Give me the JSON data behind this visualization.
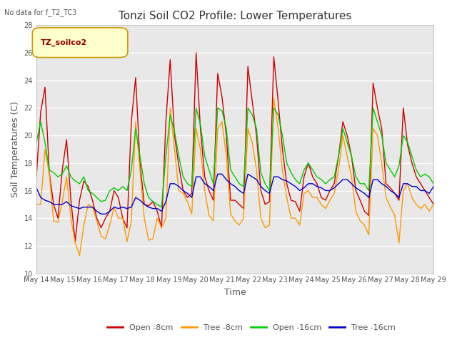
{
  "title": "Tonzi Soil CO2 Profile: Lower Temperatures",
  "subtitle": "No data for f_T2_TC3",
  "ylabel": "Soil Temperatures (C)",
  "xlabel": "Time",
  "ylim": [
    10,
    28
  ],
  "yticks": [
    10,
    12,
    14,
    16,
    18,
    20,
    22,
    24,
    26,
    28
  ],
  "xtick_labels": [
    "May 14",
    "May 15",
    "May 16",
    "May 17",
    "May 18",
    "May 19",
    "May 20",
    "May 21",
    "May 22",
    "May 23",
    "May 24",
    "May 25",
    "May 26",
    "May 27",
    "May 28",
    "May 29"
  ],
  "legend_label": "TZ_soilco2",
  "legend_entries": [
    "Open -8cm",
    "Tree -8cm",
    "Open -16cm",
    "Tree -16cm"
  ],
  "line_colors": [
    "#cc0000",
    "#ff9900",
    "#00cc00",
    "#0000cc"
  ],
  "title_fontsize": 11,
  "axis_label_fontsize": 9,
  "tick_fontsize": 7,
  "legend_fontsize": 8,
  "subtitle_fontsize": 7,
  "open8": [
    17.0,
    21.7,
    23.5,
    17.3,
    15.0,
    14.0,
    17.5,
    19.7,
    15.3,
    12.3,
    15.3,
    16.7,
    16.3,
    15.3,
    14.0,
    13.3,
    14.0,
    14.5,
    16.0,
    15.5,
    14.0,
    13.3,
    21.0,
    24.2,
    18.0,
    15.0,
    14.9,
    15.2,
    14.5,
    13.3,
    21.0,
    25.5,
    20.0,
    17.8,
    16.0,
    15.5,
    15.8,
    26.0,
    20.5,
    17.0,
    16.0,
    15.3,
    24.5,
    22.8,
    20.0,
    15.3,
    15.3,
    15.0,
    14.7,
    25.0,
    22.5,
    20.0,
    16.0,
    15.0,
    15.2,
    25.7,
    22.5,
    19.0,
    16.5,
    15.3,
    15.2,
    14.5,
    17.0,
    18.0,
    17.0,
    16.5,
    15.5,
    15.3,
    16.0,
    16.5,
    18.5,
    21.0,
    20.0,
    18.5,
    16.0,
    15.3,
    14.5,
    14.2,
    23.8,
    22.0,
    20.5,
    16.5,
    16.2,
    15.8,
    15.3,
    22.0,
    19.3,
    18.0,
    17.0,
    16.5,
    16.0,
    15.5,
    15.0
  ],
  "tree8": [
    15.0,
    15.0,
    19.0,
    17.2,
    13.8,
    13.7,
    15.2,
    17.0,
    14.0,
    12.2,
    11.3,
    13.5,
    15.0,
    14.8,
    13.8,
    12.7,
    12.5,
    13.5,
    14.8,
    14.0,
    14.0,
    12.3,
    13.8,
    21.0,
    17.5,
    14.0,
    12.4,
    12.5,
    14.0,
    13.3,
    14.0,
    22.0,
    19.0,
    16.0,
    15.8,
    15.2,
    14.3,
    20.5,
    19.0,
    16.0,
    14.2,
    13.8,
    20.5,
    21.0,
    18.5,
    14.3,
    13.8,
    13.5,
    14.0,
    20.5,
    19.5,
    17.5,
    14.0,
    13.3,
    13.5,
    22.7,
    20.5,
    17.5,
    15.5,
    14.0,
    14.0,
    13.5,
    15.8,
    16.0,
    15.5,
    15.5,
    15.0,
    14.7,
    15.3,
    15.8,
    17.5,
    20.0,
    18.5,
    17.0,
    14.5,
    13.8,
    13.5,
    12.8,
    20.5,
    20.0,
    18.0,
    15.5,
    14.8,
    14.2,
    12.2,
    16.0,
    16.5,
    15.5,
    15.0,
    14.7,
    15.0,
    14.5,
    15.0
  ],
  "open16": [
    19.5,
    21.0,
    19.5,
    17.5,
    17.3,
    17.0,
    17.2,
    17.8,
    17.0,
    16.7,
    16.5,
    17.0,
    16.0,
    15.8,
    15.5,
    15.2,
    15.3,
    16.0,
    16.2,
    16.0,
    16.3,
    16.0,
    17.5,
    20.5,
    18.5,
    16.5,
    15.5,
    15.2,
    15.0,
    14.8,
    18.5,
    21.5,
    20.3,
    18.5,
    17.0,
    16.5,
    16.3,
    22.0,
    20.8,
    18.5,
    17.5,
    16.5,
    22.0,
    21.8,
    20.5,
    17.5,
    17.0,
    16.5,
    16.3,
    22.0,
    21.5,
    20.5,
    17.3,
    16.5,
    16.0,
    22.0,
    21.5,
    20.0,
    18.0,
    17.3,
    16.8,
    16.5,
    17.5,
    18.0,
    17.5,
    17.0,
    16.8,
    16.5,
    16.8,
    17.0,
    18.5,
    20.5,
    19.5,
    18.5,
    17.0,
    16.5,
    16.5,
    16.0,
    22.0,
    21.0,
    20.0,
    18.0,
    17.5,
    17.0,
    17.8,
    20.0,
    19.5,
    18.5,
    17.5,
    17.0,
    17.2,
    17.0,
    16.5
  ],
  "tree16": [
    16.2,
    15.5,
    15.3,
    15.2,
    15.0,
    15.0,
    15.0,
    15.2,
    14.9,
    14.8,
    14.7,
    14.8,
    14.8,
    14.8,
    14.5,
    14.3,
    14.3,
    14.5,
    14.8,
    14.7,
    14.8,
    14.7,
    14.8,
    15.5,
    15.3,
    15.0,
    14.8,
    14.7,
    14.7,
    14.5,
    15.2,
    16.5,
    16.5,
    16.3,
    16.0,
    15.8,
    15.5,
    17.0,
    17.0,
    16.5,
    16.3,
    16.0,
    17.2,
    17.2,
    16.8,
    16.5,
    16.3,
    16.0,
    15.8,
    17.2,
    17.0,
    16.8,
    16.3,
    16.0,
    15.8,
    17.0,
    17.0,
    16.8,
    16.7,
    16.5,
    16.3,
    16.0,
    16.2,
    16.5,
    16.5,
    16.3,
    16.2,
    16.0,
    16.0,
    16.2,
    16.5,
    16.8,
    16.8,
    16.5,
    16.2,
    16.0,
    15.8,
    15.5,
    16.8,
    16.8,
    16.5,
    16.3,
    16.0,
    15.8,
    15.5,
    16.5,
    16.5,
    16.3,
    16.3,
    16.0,
    16.0,
    15.8,
    16.3
  ]
}
